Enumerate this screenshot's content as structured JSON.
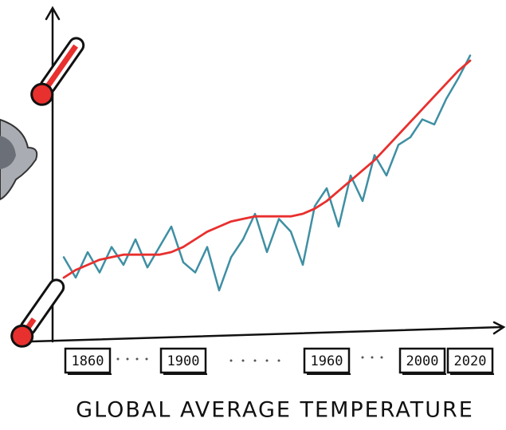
{
  "chart_data": {
    "type": "line",
    "title": "GLOBAL AVERAGE TEMPERATURE",
    "x": [
      1850,
      1855,
      1860,
      1865,
      1870,
      1875,
      1880,
      1885,
      1890,
      1895,
      1900,
      1905,
      1910,
      1915,
      1920,
      1925,
      1930,
      1935,
      1940,
      1945,
      1950,
      1955,
      1960,
      1965,
      1970,
      1975,
      1980,
      1985,
      1990,
      1995,
      2000,
      2005,
      2010,
      2015,
      2020
    ],
    "xlim": [
      1850,
      2020
    ],
    "xticks": [
      1860,
      1900,
      1960,
      2000,
      2020
    ],
    "ylim": [
      0,
      100
    ],
    "grid": false,
    "series": [
      {
        "color": "#3f8fa3",
        "values": [
          18,
          10,
          20,
          12,
          22,
          15,
          25,
          14,
          22,
          30,
          16,
          12,
          22,
          5,
          18,
          25,
          35,
          20,
          33,
          28,
          15,
          38,
          45,
          30,
          50,
          40,
          58,
          50,
          62,
          65,
          72,
          70,
          80,
          88,
          97
        ]
      },
      {
        "color": "#e8302e",
        "values": [
          10,
          13,
          15,
          17,
          18,
          19,
          19,
          19,
          19,
          20,
          22,
          25,
          28,
          30,
          32,
          33,
          34,
          34,
          34,
          34,
          35,
          37,
          40,
          44,
          48,
          52,
          56,
          61,
          66,
          71,
          76,
          81,
          86,
          91,
          95
        ]
      }
    ]
  }
}
